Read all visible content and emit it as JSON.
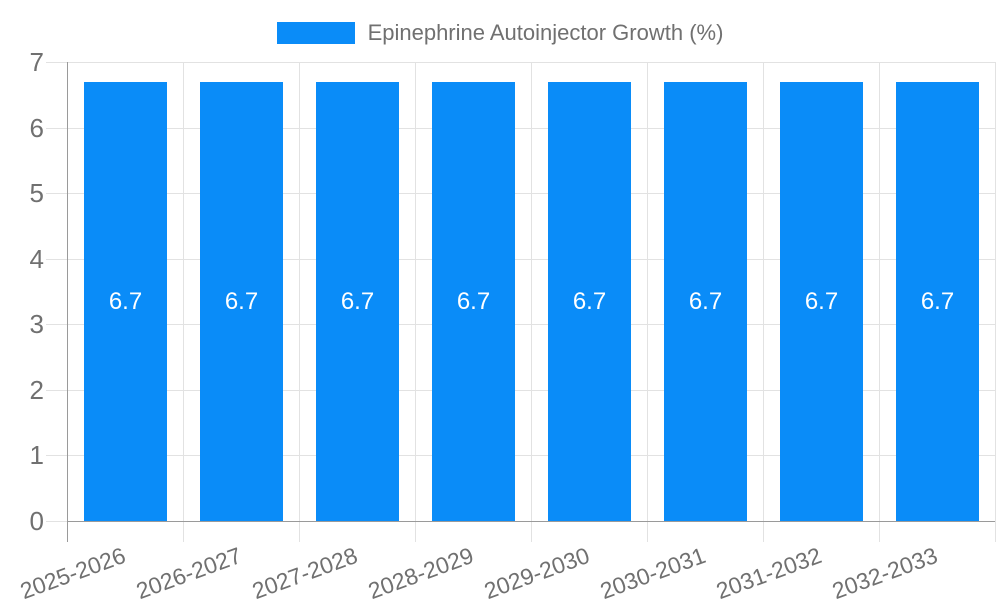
{
  "chart_data": {
    "type": "bar",
    "title": "Epinephrine Autoinjector Growth (%)",
    "categories": [
      "2025-2026",
      "2026-2027",
      "2027-2028",
      "2028-2029",
      "2029-2030",
      "2030-2031",
      "2031-2032",
      "2032-2033"
    ],
    "values": [
      6.7,
      6.7,
      6.7,
      6.7,
      6.7,
      6.7,
      6.7,
      6.7
    ],
    "value_labels": [
      "6.7",
      "6.7",
      "6.7",
      "6.7",
      "6.7",
      "6.7",
      "6.7",
      "6.7"
    ],
    "xlabel": "",
    "ylabel": "",
    "ylim": [
      0,
      7
    ],
    "yticks": [
      "0",
      "1",
      "2",
      "3",
      "4",
      "5",
      "6",
      "7"
    ],
    "grid": "on",
    "legend_position": "top-center",
    "series": [
      {
        "name": "Epinephrine Autoinjector Growth (%)",
        "values": [
          6.7,
          6.7,
          6.7,
          6.7,
          6.7,
          6.7,
          6.7,
          6.7
        ]
      }
    ]
  },
  "colors": {
    "bar": "#0a8cf8",
    "grid": "#e2e2e2",
    "axis": "#9a9a9a",
    "tick_text": "#707070",
    "legend_text": "#707070",
    "value_text": "#ffffff",
    "background": "#ffffff"
  }
}
